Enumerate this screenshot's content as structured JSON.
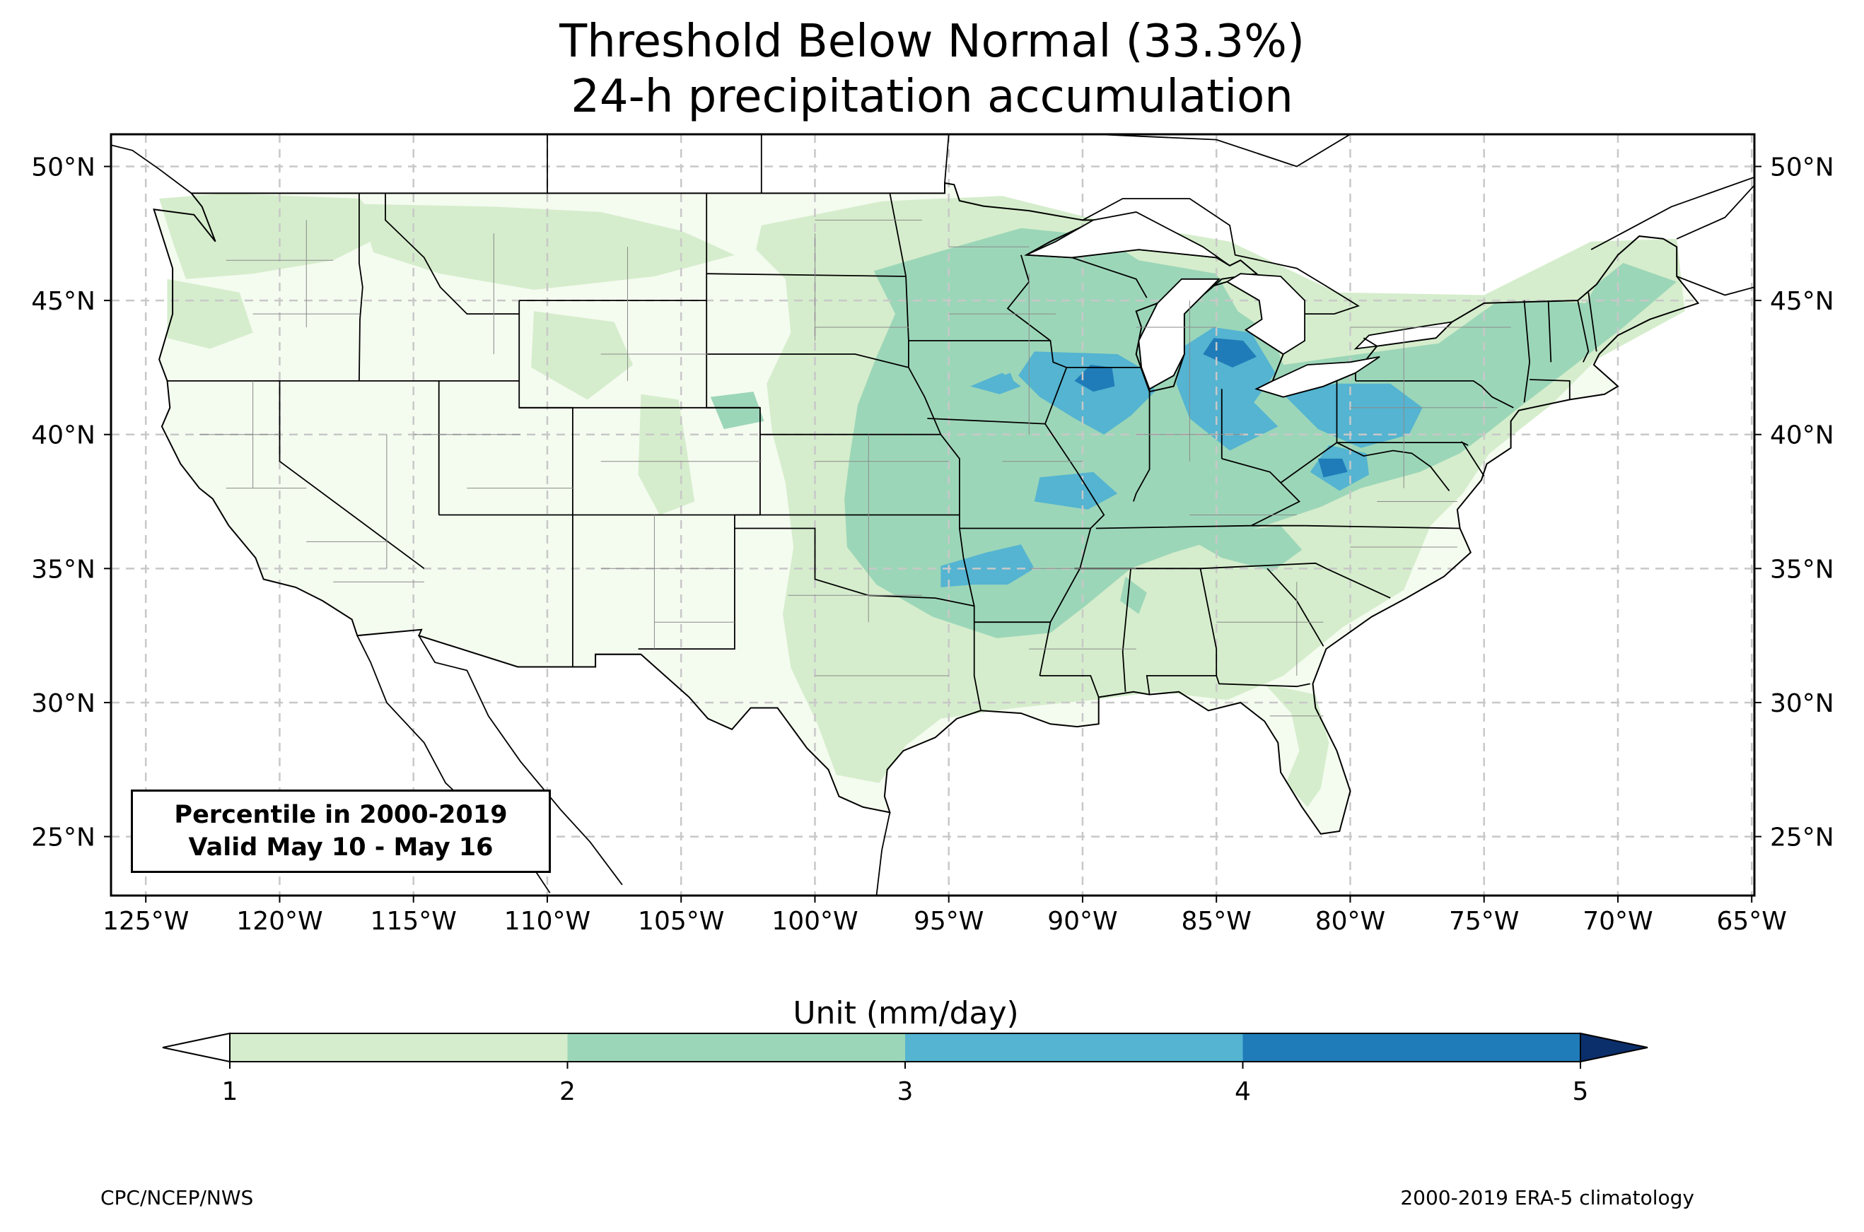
{
  "figure": {
    "title_line1": "Threshold Below Normal (33.3%)",
    "title_line2": "24-h precipitation accumulation",
    "info_box": {
      "line1": "Percentile in 2000-2019",
      "line2": "Valid May 10 - May 16"
    },
    "footer_left": "CPC/NCEP/NWS",
    "footer_right": "2000-2019 ERA-5 climatology"
  },
  "map": {
    "lon_range": [
      -126.3,
      -64.9
    ],
    "lat_range": [
      22.8,
      51.2
    ],
    "lon_ticks": [
      -125,
      -120,
      -115,
      -110,
      -105,
      -100,
      -95,
      -90,
      -85,
      -80,
      -75,
      -70,
      -65
    ],
    "lat_ticks": [
      25,
      30,
      35,
      40,
      45,
      50
    ],
    "lon_tick_labels": [
      "125°W",
      "120°W",
      "115°W",
      "110°W",
      "105°W",
      "100°W",
      "95°W",
      "90°W",
      "85°W",
      "80°W",
      "75°W",
      "70°W",
      "65°W"
    ],
    "lat_tick_labels": [
      "25°N",
      "30°N",
      "35°N",
      "40°N",
      "45°N",
      "50°N"
    ],
    "grid": true,
    "land_base_color": "#f4fbef",
    "state_line_color": "#000000",
    "county_line_color": "#8a8a8a",
    "precip_bands": [
      {
        "range": "1-2",
        "color": "#d5edcc"
      },
      {
        "range": "2-3",
        "color": "#9cd6b8"
      },
      {
        "range": "3-4",
        "color": "#54b4d1"
      },
      {
        "range": "4-5",
        "color": "#1f7cb8"
      },
      {
        "range": ">5",
        "color": "#0b3f7c"
      }
    ]
  },
  "colorbar": {
    "title": "Unit (mm/day)",
    "ticks": [
      "1",
      "2",
      "3",
      "4",
      "5"
    ],
    "under_color": "#ffffff",
    "over_color": "#0b2f6b",
    "colors": [
      "#d5edcc",
      "#9cd6b8",
      "#54b4d1",
      "#1f7cb8"
    ]
  }
}
